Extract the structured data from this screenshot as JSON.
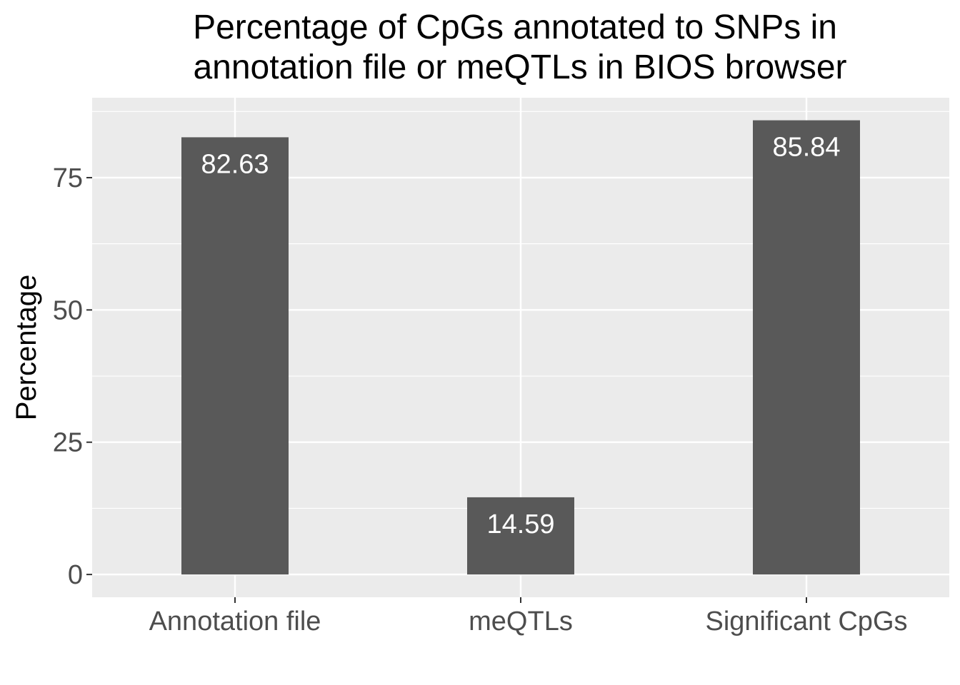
{
  "chart_data": {
    "type": "bar",
    "title_lines": [
      "Percentage of CpGs annotated to SNPs in",
      "annotation file or meQTLs in BIOS browser"
    ],
    "xlabel": "",
    "ylabel": "Percentage",
    "categories": [
      "Annotation file",
      "meQTLs",
      "Significant CpGs"
    ],
    "values": [
      82.63,
      14.59,
      85.84
    ],
    "value_labels": [
      "82.63",
      "14.59",
      "85.84"
    ],
    "ylim": [
      -4.3,
      90.1
    ],
    "yticks": [
      0,
      25,
      50,
      75
    ],
    "ytick_labels": [
      "0",
      "25",
      "50",
      "75"
    ],
    "grid": true,
    "legend": "none",
    "colors": {
      "bar": "#595959",
      "panel": "#ebebeb",
      "grid": "#ffffff",
      "tick": "#333333"
    }
  }
}
